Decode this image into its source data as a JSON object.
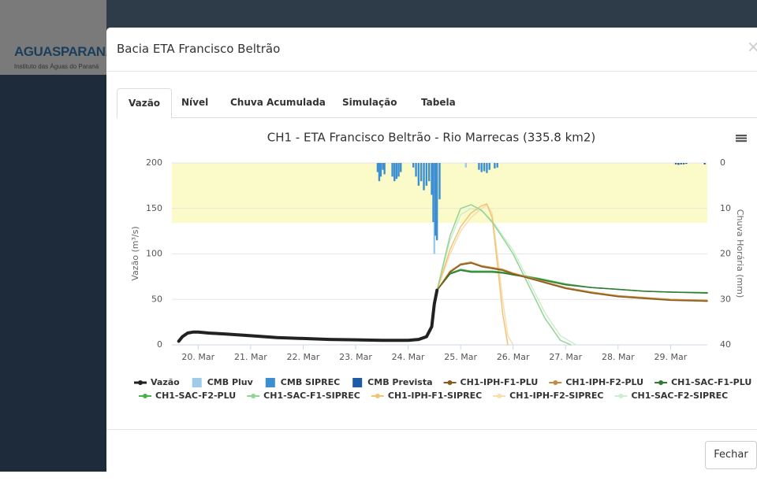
{
  "logo": {
    "title": "AGUASPARANÁ",
    "subtitle": "Instituto das Águas do Paraná"
  },
  "header": {
    "title": "Bacia ETA Francisco Beltrão",
    "close": "×"
  },
  "tabs": [
    "Vazão",
    "Nível",
    "Chuva Acumulada",
    "Simulação",
    "Tabela"
  ],
  "footer": {
    "button": "Fechar"
  },
  "chart_data": {
    "type": "line",
    "title": "CH1 - ETA Francisco Beltrão - Rio Marrecas (335.8 km2)",
    "y_label": "Vazão (m³/s)",
    "y2_label": "Chuva Horária (mm)",
    "xlim": [
      19.5,
      29.7
    ],
    "xticks": [
      {
        "value": 20,
        "label": "20. Mar"
      },
      {
        "value": 21,
        "label": "21. Mar"
      },
      {
        "value": 22,
        "label": "22. Mar"
      },
      {
        "value": 23,
        "label": "23. Mar"
      },
      {
        "value": 24,
        "label": "24. Mar"
      },
      {
        "value": 25,
        "label": "25. Mar"
      },
      {
        "value": 26,
        "label": "26. Mar"
      },
      {
        "value": 27,
        "label": "27. Mar"
      },
      {
        "value": 28,
        "label": "28. Mar"
      },
      {
        "value": 29,
        "label": "29. Mar"
      }
    ],
    "ylim": [
      0,
      200
    ],
    "yticks": [
      0,
      50,
      100,
      150,
      200
    ],
    "y2lim": [
      0,
      40
    ],
    "y2_reversed": true,
    "y2ticks": [
      0,
      10,
      20,
      30,
      40
    ],
    "grid": true,
    "plot_band": {
      "from": 134,
      "to": 200,
      "color": "#fbfbc9"
    },
    "series": [
      {
        "name": "Vazão",
        "color": "#222222",
        "type": "line",
        "width": 4,
        "x": [
          19.63,
          19.7,
          19.8,
          19.9,
          20.0,
          20.2,
          20.5,
          21.0,
          21.5,
          22.0,
          22.5,
          23.0,
          23.5,
          24.0,
          24.2,
          24.35,
          24.45,
          24.5,
          24.55
        ],
        "values": [
          4,
          9,
          13,
          14,
          14,
          13,
          12,
          10,
          8,
          7,
          6,
          5.5,
          5,
          5,
          6,
          9,
          20,
          45,
          60
        ]
      },
      {
        "name": "CMB Pluv",
        "color": "#9dcbe8",
        "type": "column",
        "axis": "y2",
        "x": [
          24.5,
          25.1
        ],
        "values": [
          20,
          1
        ]
      },
      {
        "name": "CMB SIPREC",
        "color": "#3d8fd1",
        "type": "column",
        "axis": "y2",
        "x": [
          23.42,
          23.45,
          23.48,
          23.52,
          23.55,
          23.7,
          23.74,
          23.78,
          23.82,
          23.86,
          24.1,
          24.15,
          24.2,
          24.25,
          24.3,
          24.35,
          24.4,
          24.45,
          24.48,
          24.52,
          24.55,
          24.6,
          25.35,
          25.4,
          25.45,
          25.5,
          25.55,
          25.65,
          25.7
        ],
        "values": [
          2,
          4,
          3,
          1.5,
          2.5,
          3,
          4,
          3.5,
          3,
          2,
          1,
          3,
          5,
          4,
          6,
          5,
          4,
          7,
          13,
          16,
          17,
          8,
          1.5,
          2,
          1.8,
          2.2,
          1.5,
          1.2,
          1
        ]
      },
      {
        "name": "CMB Prevista",
        "color": "#1f5aa8",
        "type": "column",
        "axis": "y2",
        "x": [
          29.1,
          29.15,
          29.2,
          29.25,
          29.3,
          29.65
        ],
        "values": [
          0.3,
          0.4,
          0.3,
          0.3,
          0.2,
          0.3
        ]
      },
      {
        "name": "CH1-IPH-F1-PLU",
        "color": "#8a5a1a",
        "type": "line",
        "width": 1.5,
        "x": [
          24.55,
          24.8,
          25.0,
          25.2,
          25.4,
          25.6,
          25.8,
          26.0,
          26.5,
          27.0,
          27.5,
          28.0,
          28.5,
          29.0,
          29.7
        ],
        "values": [
          60,
          80,
          88,
          90,
          86,
          84,
          82,
          78,
          70,
          62,
          57,
          53,
          51,
          49,
          48
        ]
      },
      {
        "name": "CH1-IPH-F2-PLU",
        "color": "#c48c42",
        "type": "line",
        "width": 1.5,
        "x": [
          24.55,
          24.8,
          25.0,
          25.2,
          25.4,
          25.6,
          25.8,
          26.0,
          26.5,
          27.0,
          27.5,
          28.0,
          28.5,
          29.0,
          29.7
        ],
        "values": [
          60,
          81,
          89,
          91,
          87,
          85,
          83,
          79,
          71,
          63,
          58,
          54,
          52,
          50,
          49
        ]
      },
      {
        "name": "CH1-SAC-F1-PLU",
        "color": "#2d7a30",
        "type": "line",
        "width": 1.5,
        "x": [
          24.55,
          24.8,
          25.0,
          25.2,
          25.4,
          25.6,
          25.8,
          26.0,
          26.5,
          27.0,
          27.5,
          28.0,
          28.5,
          29.0,
          29.7
        ],
        "values": [
          60,
          78,
          82,
          80,
          80,
          80,
          79,
          77,
          72,
          66,
          63,
          61,
          59,
          58,
          57
        ]
      },
      {
        "name": "CH1-SAC-F2-PLU",
        "color": "#4caf50",
        "type": "line",
        "width": 1.5,
        "x": [
          24.55,
          24.8,
          25.0,
          25.2,
          25.4,
          25.6,
          25.8,
          26.0,
          26.5,
          27.0,
          27.5,
          28.0,
          28.5,
          29.0,
          29.7
        ],
        "values": [
          60,
          79,
          83,
          81,
          81,
          81,
          80,
          78,
          73,
          67,
          63,
          61,
          59,
          58,
          57.5
        ]
      },
      {
        "name": "CH1-SAC-F1-SIPREC",
        "color": "#93d493",
        "type": "line",
        "width": 1.5,
        "x": [
          24.55,
          24.8,
          25.0,
          25.2,
          25.4,
          25.6,
          25.8,
          26.0,
          26.3,
          26.6,
          26.9,
          27.1
        ],
        "values": [
          60,
          120,
          150,
          154,
          148,
          135,
          118,
          100,
          65,
          30,
          5,
          0
        ]
      },
      {
        "name": "CH1-IPH-F1-SIPREC",
        "color": "#f2c374",
        "type": "line",
        "width": 1.5,
        "x": [
          24.55,
          24.8,
          25.0,
          25.2,
          25.4,
          25.5,
          25.6,
          25.7,
          25.8,
          25.9
        ],
        "values": [
          60,
          105,
          130,
          145,
          153,
          155,
          140,
          90,
          35,
          0
        ]
      },
      {
        "name": "CH1-IPH-F2-SIPREC",
        "color": "#f8ddb0",
        "type": "line",
        "width": 1.5,
        "x": [
          24.55,
          24.8,
          25.0,
          25.2,
          25.4,
          25.5,
          25.6,
          25.7,
          25.8,
          25.9,
          26.0
        ],
        "values": [
          60,
          100,
          125,
          140,
          150,
          154,
          145,
          100,
          50,
          10,
          0
        ]
      },
      {
        "name": "CH1-SAC-F2-SIPREC",
        "color": "#cdeecd",
        "type": "line",
        "width": 1.5,
        "x": [
          24.55,
          24.8,
          25.0,
          25.2,
          25.4,
          25.6,
          25.8,
          26.0,
          26.3,
          26.6,
          26.9,
          27.2
        ],
        "values": [
          60,
          115,
          143,
          150,
          147,
          137,
          120,
          104,
          70,
          36,
          10,
          0
        ]
      }
    ]
  }
}
